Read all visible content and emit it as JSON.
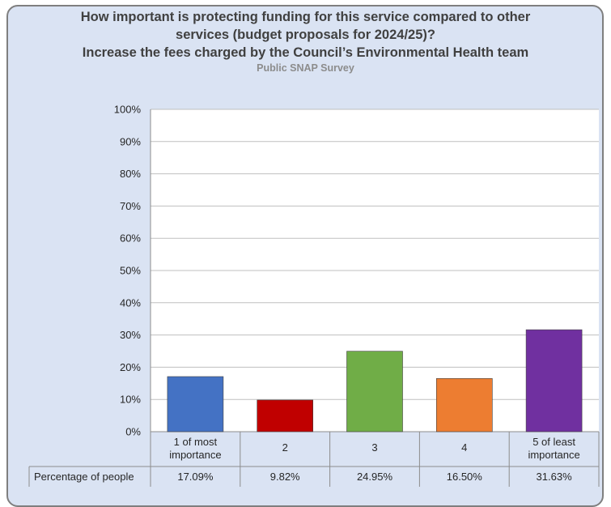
{
  "chart_data": {
    "type": "bar",
    "title_lines": [
      "How important is protecting funding for this service compared to other",
      "services (budget proposals for 2024/25)?",
      "Increase the fees charged by the Council’s Environmental Health team"
    ],
    "subtitle": "Public SNAP Survey",
    "categories": [
      [
        "1 of most",
        "importance"
      ],
      [
        "2"
      ],
      [
        "3"
      ],
      [
        "4"
      ],
      [
        "5 of least",
        "importance"
      ]
    ],
    "values": [
      17.09,
      9.82,
      24.95,
      16.5,
      31.63
    ],
    "value_labels": [
      "17.09%",
      "9.82%",
      "24.95%",
      "16.50%",
      "31.63%"
    ],
    "series_name": "Percentage of people",
    "colors": [
      "#4472c4",
      "#c00000",
      "#70ad47",
      "#ed7d31",
      "#7030a0"
    ],
    "yticks": [
      "0%",
      "10%",
      "20%",
      "30%",
      "40%",
      "50%",
      "60%",
      "70%",
      "80%",
      "90%",
      "100%"
    ],
    "ylim": [
      0,
      100
    ],
    "grid": true,
    "data_table": true
  }
}
